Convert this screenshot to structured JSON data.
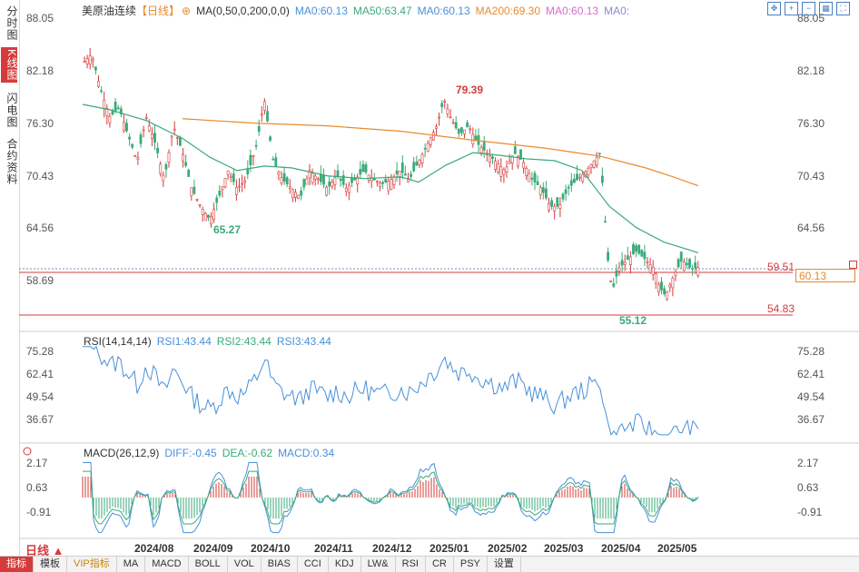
{
  "sidebar": {
    "tabs": [
      "分时图",
      "K线图",
      "闪电图",
      "合约资料"
    ],
    "active_index": 1
  },
  "header": {
    "symbol": "美原油连续",
    "period_tag": "【日线】",
    "ma_label": "MA(0,50,0,200,0,0)",
    "ma_items": [
      {
        "text": "MA0:60.13",
        "color": "#4a90d9"
      },
      {
        "text": "MA50:63.47",
        "color": "#3aaa7a"
      },
      {
        "text": "MA0:60.13",
        "color": "#4a90d9"
      },
      {
        "text": "MA200:69.30",
        "color": "#e88a2c"
      },
      {
        "text": "MA0:60.13",
        "color": "#d96bd0"
      },
      {
        "text": "MA0:",
        "color": "#8a8ad9"
      }
    ]
  },
  "price_axis": [
    "88.05",
    "82.18",
    "76.30",
    "70.43",
    "64.56",
    "58.69"
  ],
  "price_labels": {
    "high": "79.39",
    "low1": "65.27",
    "low2": "55.12",
    "line1": "59.51",
    "line2": "54.83",
    "current": "60.13"
  },
  "rsi": {
    "title": "RSI(14,14,14)",
    "items": [
      {
        "text": "RSI1:43.44",
        "color": "#4a90d9"
      },
      {
        "text": "RSI2:43.44",
        "color": "#3aaa7a"
      },
      {
        "text": "RSI3:43.44",
        "color": "#4a90d9"
      }
    ],
    "axis": [
      "75.28",
      "62.41",
      "49.54",
      "36.67"
    ]
  },
  "macd": {
    "title": "MACD(26,12,9)",
    "items": [
      {
        "text": "DIFF:-0.45",
        "color": "#4a90d9"
      },
      {
        "text": "DEA:-0.62",
        "color": "#3aaa7a"
      },
      {
        "text": "MACD:0.34",
        "color": "#4a90d9"
      }
    ],
    "axis": [
      "2.17",
      "0.63",
      "-0.91"
    ]
  },
  "x_axis": [
    "2024/08",
    "2024/09",
    "2024/10",
    "2024/11",
    "2024/12",
    "2025/01",
    "2025/02",
    "2025/03",
    "2025/04",
    "2025/05"
  ],
  "period_button": "日线 ▲",
  "bottom_tabs": [
    "指标",
    "模板",
    "VIP指标",
    "MA",
    "MACD",
    "BOLL",
    "VOL",
    "BIAS",
    "CCI",
    "KDJ",
    "LW&",
    "RSI",
    "CR",
    "PSY",
    "设置"
  ],
  "colors": {
    "up": "#d63b3b",
    "down": "#3aaa7a",
    "ma50": "#3aaa7a",
    "ma200": "#e88a2c",
    "rsi": "#4a90d9",
    "diff": "#4a90d9",
    "dea": "#3aaa7a"
  },
  "chart_data": {
    "type": "candlestick",
    "title": "美原油连续 日线",
    "ylim": [
      54.83,
      88.05
    ],
    "close_series": [
      64.2,
      63.5,
      64.0,
      63.0,
      62.7,
      61.8,
      62.4,
      61.5,
      62.0,
      61.0,
      60.7,
      60.2,
      60.9,
      60.1,
      59.7,
      60.5,
      59.9,
      60.6,
      60.1,
      59.5,
      59.9,
      60.3,
      60.1
    ],
    "key_levels": {
      "high": 79.39,
      "low_sep": 65.27,
      "low_apr": 55.12,
      "line_red": 59.51,
      "line_bottom": 54.83,
      "current": 60.13
    }
  }
}
